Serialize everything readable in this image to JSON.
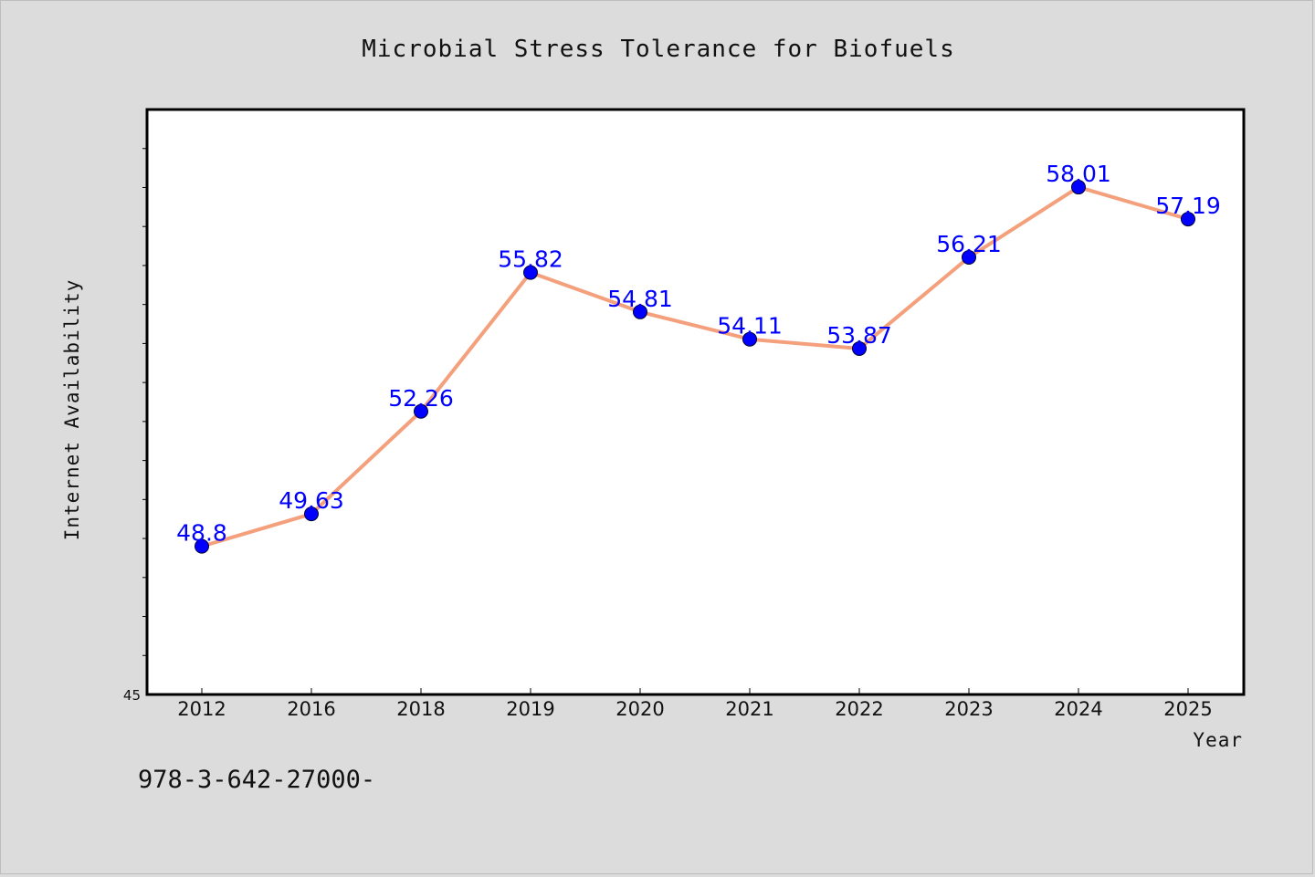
{
  "chart_data": {
    "type": "line",
    "title": "Microbial Stress Tolerance for Biofuels",
    "xlabel": "Year",
    "ylabel": "Internet Availability",
    "categories": [
      "2012",
      "2016",
      "2018",
      "2019",
      "2020",
      "2021",
      "2022",
      "2023",
      "2024",
      "2025"
    ],
    "series": [
      {
        "values": [
          48.8,
          49.63,
          52.26,
          55.82,
          54.81,
          54.11,
          53.87,
          56.21,
          58.01,
          57.19
        ]
      }
    ],
    "data_labels": [
      "48.8",
      "49.63",
      "52.26",
      "55.82",
      "54.81",
      "54.11",
      "53.87",
      "56.21",
      "58.01",
      "57.19"
    ],
    "ylim": [
      45,
      60
    ],
    "y_tick_labels": [
      "45"
    ],
    "grid": false,
    "line_color": "#f4a07c",
    "marker_color": "#0000ff",
    "label_color": "#0000ff",
    "annotation": "978-3-642-27000-"
  }
}
